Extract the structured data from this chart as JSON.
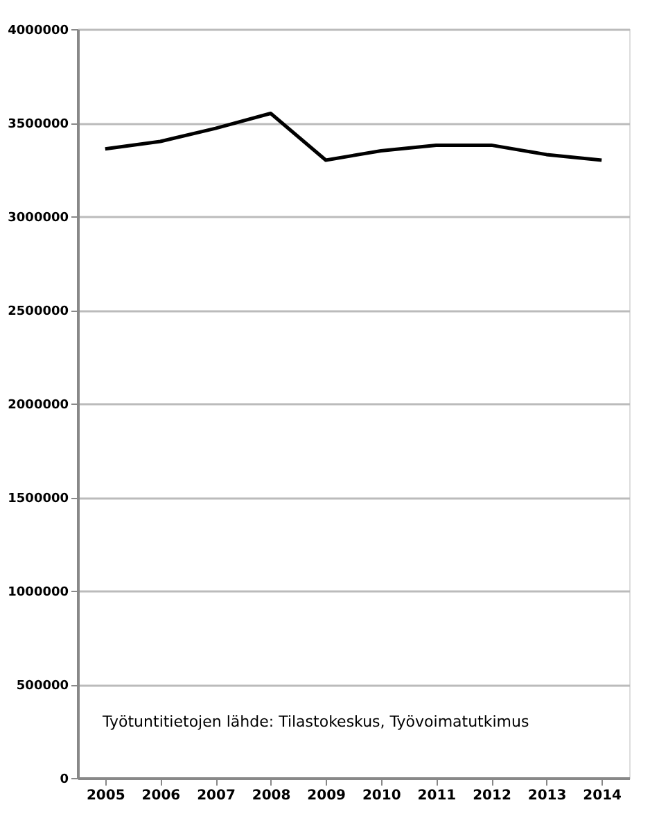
{
  "chart_data": {
    "type": "line",
    "categories": [
      "2005",
      "2006",
      "2007",
      "2008",
      "2009",
      "2010",
      "2011",
      "2012",
      "2013",
      "2014"
    ],
    "series": [
      {
        "color": "#000000",
        "values": [
          3360000,
          3400000,
          3470000,
          3550000,
          3300000,
          3350000,
          3380000,
          3380000,
          3330000,
          3300000
        ]
      }
    ],
    "ylim": [
      0,
      4000000
    ],
    "yticks": [
      0,
      500000,
      1000000,
      1500000,
      2000000,
      2500000,
      3000000,
      3500000,
      4000000
    ],
    "grid": "y",
    "marker": "none",
    "line_style": "solid",
    "annotations": [
      "Työtuntitietojen lähde: Tilastokeskus, Työvoimatutkimus"
    ]
  }
}
